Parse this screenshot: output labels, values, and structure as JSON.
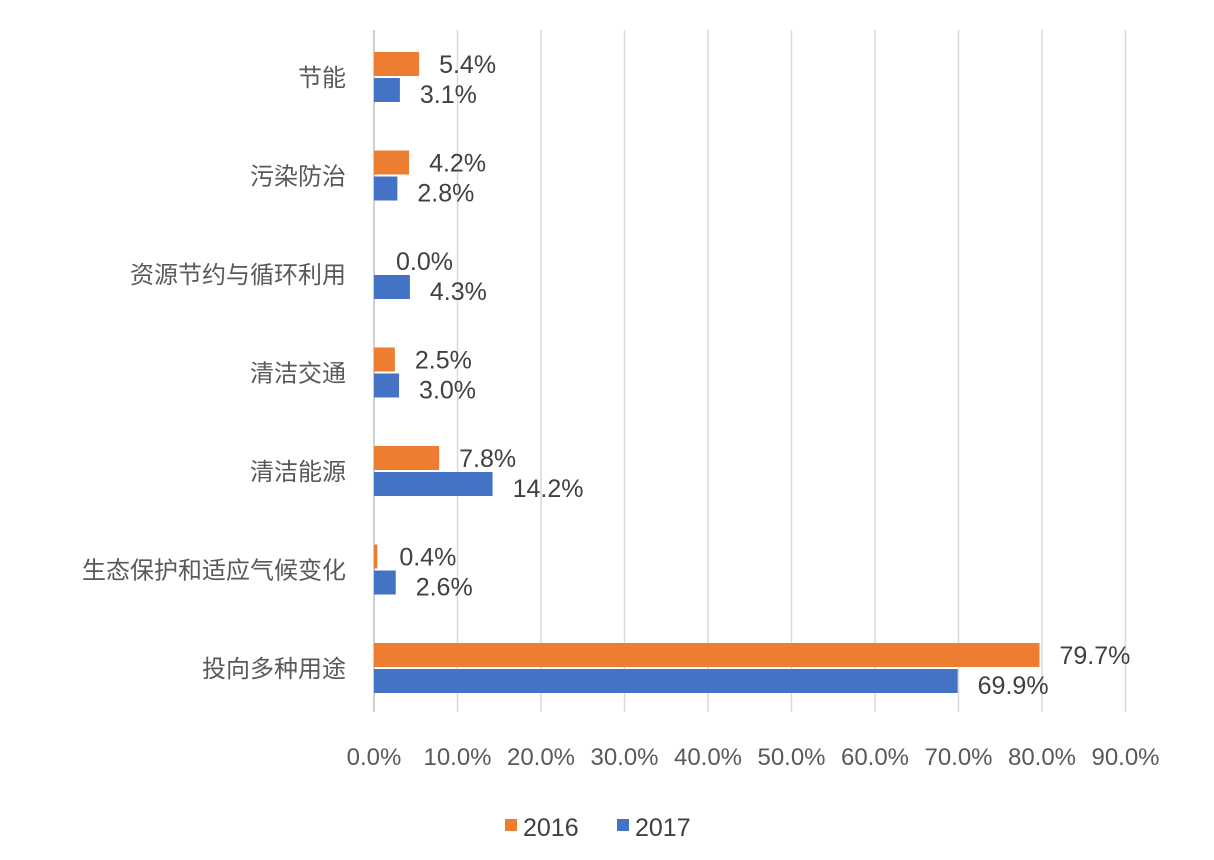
{
  "chart_data": {
    "type": "bar",
    "orientation": "horizontal",
    "categories": [
      "节能",
      "污染防治",
      "资源节约与循环利用",
      "清洁交通",
      "清洁能源",
      "生态保护和适应气候变化",
      "投向多种用途"
    ],
    "series": [
      {
        "name": "2016",
        "color": "#ED7D31",
        "values": [
          5.4,
          4.2,
          0.0,
          2.5,
          7.8,
          0.4,
          79.7
        ],
        "labels": [
          "5.4%",
          "4.2%",
          "0.0%",
          "2.5%",
          "7.8%",
          "0.4%",
          "79.7%"
        ]
      },
      {
        "name": "2017",
        "color": "#4472C4",
        "values": [
          3.1,
          2.8,
          4.3,
          3.0,
          14.2,
          2.6,
          69.9
        ],
        "labels": [
          "3.1%",
          "2.8%",
          "4.3%",
          "3.0%",
          "14.2%",
          "2.6%",
          "69.9%"
        ]
      }
    ],
    "xlim": [
      0,
      90
    ],
    "xticks": [
      0,
      10,
      20,
      30,
      40,
      50,
      60,
      70,
      80,
      90
    ],
    "xtick_labels": [
      "0.0%",
      "10.0%",
      "20.0%",
      "30.0%",
      "40.0%",
      "50.0%",
      "60.0%",
      "70.0%",
      "80.0%",
      "90.0%"
    ],
    "grid": true,
    "legend": {
      "position": "bottom",
      "entries": [
        "2016",
        "2017"
      ]
    },
    "title": "",
    "xlabel": "",
    "ylabel": ""
  }
}
